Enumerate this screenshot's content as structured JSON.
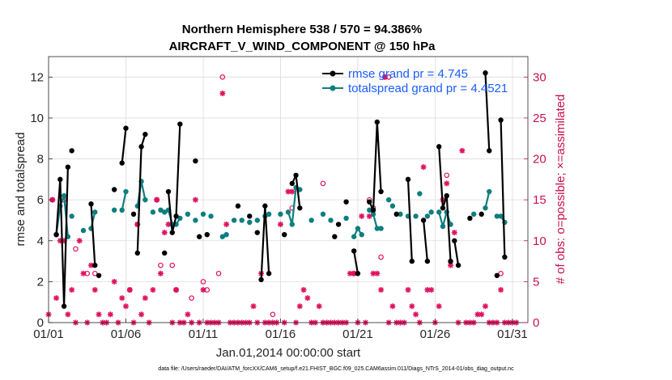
{
  "chart_data": {
    "type": "line",
    "title_line1": "Northern Hemisphere 538 / 570 = 94.386%",
    "title_line2": "AIRCRAFT_V_WIND_COMPONENT @ 150 hPa",
    "xlabel": "Jan.01,2014 00:00:00 start",
    "ylabel_left": "rmse and totalspread",
    "ylabel_right": "# of obs: o=possible; ×=assimilated",
    "footer": "data file: /Users/raeder/DAI/ATM_forcXX/CAM6_setup/f.e21.FHIST_BGC.f09_025.CAM6assim.011/Diags_NTrS_2014-01/obs_diag_output.nc",
    "xlim": [
      1,
      32
    ],
    "ylim_left": [
      0,
      13
    ],
    "ylim_right": [
      0,
      32.5
    ],
    "x_ticks": [
      1,
      6,
      11,
      16,
      21,
      26,
      31
    ],
    "x_tick_labels": [
      "01/01",
      "01/06",
      "01/11",
      "01/16",
      "01/21",
      "01/26",
      "01/31"
    ],
    "y_left_ticks": [
      "0",
      "2",
      "4",
      "6",
      "8",
      "10",
      "12"
    ],
    "y_right_ticks": [
      "0",
      "5",
      "10",
      "15",
      "20",
      "25",
      "30"
    ],
    "legend": {
      "position": "top-right",
      "rmse": "rmse grand pr = 4.745",
      "spread": "totalspread grand pr = 4.4521"
    },
    "series": [
      {
        "name": "rmse",
        "color": "#000000",
        "segments": [
          [
            [
              1.5,
              4.3
            ],
            [
              1.75,
              7.0
            ],
            [
              2.0,
              0.8
            ],
            [
              2.25,
              7.6
            ]
          ],
          [
            [
              3.75,
              5.8
            ],
            [
              4.0,
              2.8
            ]
          ],
          [
            [
              5.75,
              7.8
            ],
            [
              6.0,
              9.5
            ]
          ],
          [
            [
              6.75,
              3.4
            ],
            [
              7.0,
              8.6
            ],
            [
              7.25,
              9.2
            ]
          ],
          [
            [
              8.75,
              6.4
            ],
            [
              9.0,
              4.4
            ],
            [
              9.25,
              5.2
            ],
            [
              9.5,
              9.7
            ]
          ],
          [
            [
              14.75,
              2.1
            ],
            [
              15.0,
              5.7
            ],
            [
              15.25,
              2.4
            ]
          ],
          [
            [
              16.75,
              6.8
            ],
            [
              17.0,
              7.2
            ],
            [
              17.25,
              5.6
            ]
          ],
          [
            [
              20.75,
              3.5
            ],
            [
              21.0,
              2.4
            ]
          ],
          [
            [
              21.75,
              5.9
            ],
            [
              22.0,
              5.5
            ],
            [
              22.25,
              9.8
            ],
            [
              22.5,
              6.4
            ]
          ],
          [
            [
              24.25,
              7.0
            ],
            [
              24.5,
              3.0
            ]
          ],
          [
            [
              25.25,
              5.0
            ],
            [
              25.5,
              3.0
            ]
          ],
          [
            [
              26.25,
              8.6
            ],
            [
              26.5,
              5.6
            ],
            [
              26.75,
              6.2
            ],
            [
              27.0,
              3.0
            ]
          ],
          [
            [
              27.25,
              4.0
            ],
            [
              27.5,
              2.8
            ]
          ],
          [
            [
              29.25,
              12.2
            ],
            [
              29.5,
              8.4
            ]
          ],
          [
            [
              30.25,
              9.9
            ],
            [
              30.5,
              3.2
            ]
          ]
        ],
        "points": [
          [
            2.5,
            8.4
          ],
          [
            4.25,
            2.3
          ],
          [
            5.25,
            6.5
          ],
          [
            6.5,
            5.3
          ],
          [
            8.5,
            3.4
          ],
          [
            10.5,
            7.9
          ],
          [
            10.75,
            4.2
          ],
          [
            11.25,
            4.3
          ],
          [
            13.25,
            5.7
          ],
          [
            14.0,
            5.2
          ],
          [
            14.5,
            4.4
          ],
          [
            16.25,
            4.3
          ],
          [
            19.5,
            4.2
          ],
          [
            19.75,
            4.8
          ],
          [
            20.25,
            5.9
          ],
          [
            23.5,
            5.3
          ],
          [
            28.25,
            5.1
          ],
          [
            29.0,
            5.3
          ],
          [
            30.0,
            2.3
          ]
        ]
      },
      {
        "name": "totalspread",
        "color": "#0e7e7e",
        "segments": [
          [
            [
              1.5,
              4.3
            ],
            [
              1.75,
              5.7
            ],
            [
              2.0,
              6.2
            ],
            [
              2.25,
              4.2
            ]
          ],
          [
            [
              3.75,
              4.6
            ],
            [
              4.0,
              5.4
            ]
          ],
          [
            [
              5.75,
              5.5
            ],
            [
              6.0,
              6.4
            ]
          ],
          [
            [
              6.75,
              5.7
            ],
            [
              7.0,
              6.9
            ],
            [
              7.25,
              6.0
            ]
          ],
          [
            [
              8.75,
              5.5
            ],
            [
              9.0,
              4.8
            ],
            [
              9.25,
              4.8
            ],
            [
              9.5,
              5.1
            ]
          ],
          [
            [
              12.25,
              4.2
            ],
            [
              12.5,
              4.3
            ]
          ],
          [
            [
              15.0,
              5.2
            ],
            [
              15.25,
              5.3
            ]
          ],
          [
            [
              16.5,
              5.4
            ],
            [
              16.75,
              4.8
            ],
            [
              17.0,
              6.6
            ],
            [
              17.25,
              6.5
            ]
          ],
          [
            [
              20.75,
              4.2
            ],
            [
              21.0,
              4.6
            ],
            [
              21.25,
              4.3
            ]
          ],
          [
            [
              21.75,
              5.5
            ],
            [
              22.0,
              5.3
            ],
            [
              22.25,
              4.6
            ],
            [
              22.5,
              4.6
            ]
          ],
          [
            [
              26.25,
              5.4
            ],
            [
              26.5,
              4.7
            ],
            [
              26.75,
              5.4
            ],
            [
              27.0,
              4.8
            ]
          ],
          [
            [
              29.25,
              5.6
            ],
            [
              29.5,
              6.4
            ]
          ],
          [
            [
              30.25,
              5.2
            ],
            [
              30.5,
              4.9
            ]
          ]
        ],
        "points": [
          [
            2.5,
            5.2
          ],
          [
            3.25,
            4.5
          ],
          [
            5.25,
            5.5
          ],
          [
            7.75,
            5.4
          ],
          [
            8.25,
            5.5
          ],
          [
            8.5,
            5.4
          ],
          [
            10.0,
            5.3
          ],
          [
            10.5,
            5.0
          ],
          [
            11.0,
            5.3
          ],
          [
            11.5,
            5.2
          ],
          [
            13.0,
            5.0
          ],
          [
            13.5,
            5.0
          ],
          [
            14.0,
            4.9
          ],
          [
            14.5,
            5.0
          ],
          [
            16.0,
            5.3
          ],
          [
            18.0,
            5.0
          ],
          [
            18.75,
            5.3
          ],
          [
            19.25,
            5.0
          ],
          [
            20.25,
            5.1
          ],
          [
            23.0,
            6.0
          ],
          [
            23.25,
            5.7
          ],
          [
            23.75,
            5.3
          ],
          [
            24.25,
            5.2
          ],
          [
            24.75,
            5.2
          ],
          [
            25.0,
            6.3
          ],
          [
            25.5,
            5.2
          ],
          [
            25.75,
            5.4
          ],
          [
            28.5,
            5.3
          ],
          [
            30.0,
            5.2
          ]
        ]
      }
    ],
    "obs_possible": [
      [
        1.25,
        15
      ],
      [
        2.0,
        15
      ],
      [
        2.75,
        9
      ],
      [
        3.5,
        6
      ],
      [
        4.0,
        6
      ],
      [
        6.25,
        4
      ],
      [
        6.75,
        12
      ],
      [
        8.0,
        15
      ],
      [
        8.25,
        7
      ],
      [
        9.0,
        7
      ],
      [
        9.25,
        4
      ],
      [
        10.25,
        3
      ],
      [
        11.0,
        5
      ],
      [
        11.25,
        4
      ],
      [
        12.0,
        6
      ],
      [
        12.25,
        30
      ],
      [
        15.5,
        1
      ],
      [
        16.75,
        14
      ],
      [
        18.75,
        17
      ],
      [
        20.75,
        6
      ],
      [
        21.75,
        15
      ],
      [
        22.0,
        14
      ],
      [
        22.5,
        8
      ],
      [
        22.75,
        30
      ],
      [
        23.0,
        30
      ],
      [
        26.75,
        18
      ],
      [
        30.25,
        6
      ]
    ],
    "obs_assimilated": [
      [
        1.0,
        1
      ],
      [
        1.25,
        15
      ],
      [
        1.5,
        3
      ],
      [
        1.75,
        10
      ],
      [
        2.0,
        10
      ],
      [
        2.25,
        1
      ],
      [
        2.5,
        4
      ],
      [
        2.75,
        0
      ],
      [
        3.0,
        10
      ],
      [
        3.25,
        6
      ],
      [
        3.5,
        0
      ],
      [
        3.75,
        7
      ],
      [
        4.0,
        4
      ],
      [
        4.25,
        1
      ],
      [
        4.5,
        0
      ],
      [
        4.75,
        0
      ],
      [
        5.0,
        1
      ],
      [
        5.25,
        5
      ],
      [
        5.5,
        0
      ],
      [
        5.75,
        3
      ],
      [
        6.0,
        2
      ],
      [
        6.25,
        4
      ],
      [
        6.5,
        0
      ],
      [
        6.75,
        12
      ],
      [
        7.0,
        1
      ],
      [
        7.25,
        3
      ],
      [
        7.5,
        0
      ],
      [
        7.75,
        4
      ],
      [
        8.0,
        15
      ],
      [
        8.25,
        6
      ],
      [
        8.5,
        11
      ],
      [
        8.75,
        12
      ],
      [
        9.0,
        0
      ],
      [
        9.25,
        4
      ],
      [
        9.5,
        0
      ],
      [
        9.75,
        0
      ],
      [
        10.0,
        1
      ],
      [
        10.25,
        0
      ],
      [
        10.5,
        15
      ],
      [
        10.75,
        0
      ],
      [
        11.0,
        4
      ],
      [
        11.25,
        0
      ],
      [
        11.5,
        0
      ],
      [
        11.75,
        0
      ],
      [
        12.0,
        0
      ],
      [
        12.25,
        28
      ],
      [
        12.5,
        12
      ],
      [
        12.75,
        0
      ],
      [
        13.0,
        0
      ],
      [
        13.25,
        0
      ],
      [
        13.5,
        0
      ],
      [
        13.75,
        0
      ],
      [
        14.0,
        0
      ],
      [
        14.25,
        2
      ],
      [
        14.5,
        0
      ],
      [
        14.75,
        6
      ],
      [
        15.0,
        0
      ],
      [
        15.25,
        0
      ],
      [
        15.5,
        0
      ],
      [
        15.75,
        0
      ],
      [
        16.0,
        12
      ],
      [
        16.25,
        0
      ],
      [
        16.5,
        16
      ],
      [
        16.75,
        16
      ],
      [
        17.0,
        0
      ],
      [
        17.25,
        2
      ],
      [
        17.5,
        4
      ],
      [
        17.75,
        3
      ],
      [
        18.0,
        0
      ],
      [
        18.25,
        0
      ],
      [
        18.5,
        2
      ],
      [
        18.75,
        0
      ],
      [
        19.0,
        0
      ],
      [
        19.25,
        0
      ],
      [
        19.5,
        0
      ],
      [
        19.75,
        0
      ],
      [
        20.0,
        0
      ],
      [
        20.25,
        0
      ],
      [
        20.5,
        6
      ],
      [
        20.75,
        6
      ],
      [
        21.0,
        0
      ],
      [
        21.25,
        13
      ],
      [
        21.5,
        0
      ],
      [
        21.75,
        13
      ],
      [
        22.0,
        6
      ],
      [
        22.25,
        6
      ],
      [
        22.5,
        4
      ],
      [
        22.75,
        30
      ],
      [
        23.0,
        0
      ],
      [
        23.25,
        2
      ],
      [
        23.5,
        0
      ],
      [
        23.75,
        0
      ],
      [
        24.0,
        0
      ],
      [
        24.25,
        4
      ],
      [
        24.5,
        2
      ],
      [
        24.75,
        1
      ],
      [
        25.0,
        0
      ],
      [
        25.25,
        19
      ],
      [
        25.5,
        4
      ],
      [
        25.75,
        4
      ],
      [
        26.0,
        0
      ],
      [
        26.25,
        2
      ],
      [
        26.5,
        15
      ],
      [
        26.75,
        17
      ],
      [
        27.0,
        7
      ],
      [
        27.25,
        11
      ],
      [
        27.5,
        0
      ],
      [
        27.75,
        21
      ],
      [
        28.0,
        0
      ],
      [
        28.25,
        0
      ],
      [
        28.5,
        0
      ],
      [
        28.75,
        1
      ],
      [
        29.0,
        1
      ],
      [
        29.25,
        2
      ],
      [
        29.5,
        0
      ],
      [
        29.75,
        0
      ],
      [
        30.0,
        0
      ],
      [
        30.25,
        4
      ],
      [
        30.5,
        0
      ],
      [
        30.75,
        0
      ],
      [
        31.0,
        0
      ],
      [
        31.25,
        0
      ]
    ]
  }
}
